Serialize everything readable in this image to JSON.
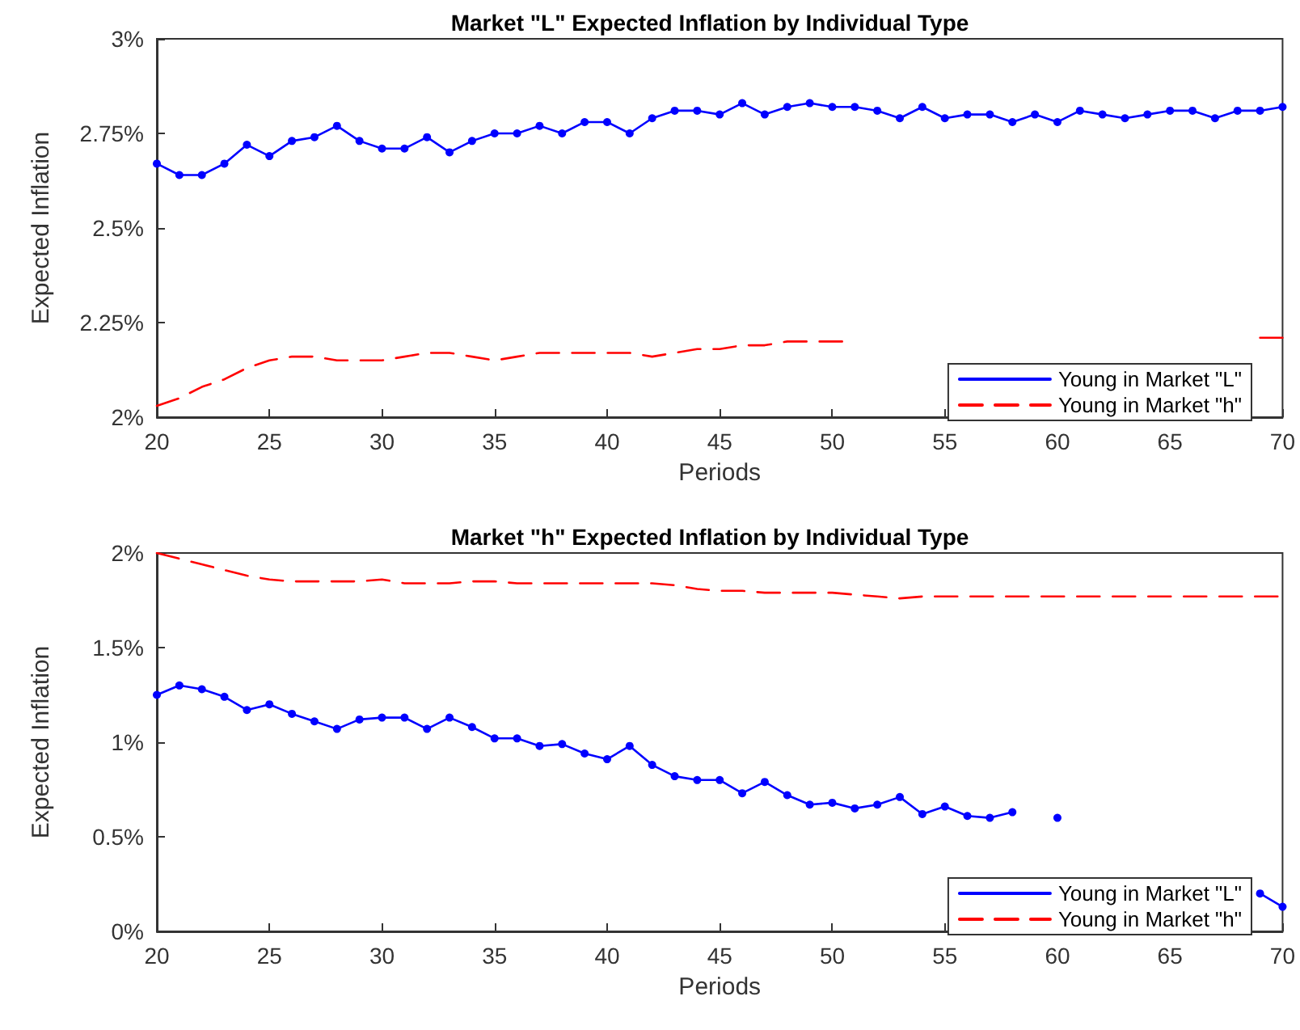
{
  "chart_data": [
    {
      "type": "line",
      "title": "Market \"L\" Expected Inflation by Individual Type",
      "xlabel": "Periods",
      "ylabel": "Expected Inflation",
      "x": [
        20,
        21,
        22,
        23,
        24,
        25,
        26,
        27,
        28,
        29,
        30,
        31,
        32,
        33,
        34,
        35,
        36,
        37,
        38,
        39,
        40,
        41,
        42,
        43,
        44,
        45,
        46,
        47,
        48,
        49,
        50,
        51,
        52,
        53,
        54,
        55,
        56,
        57,
        58,
        59,
        60,
        61,
        62,
        63,
        64,
        65,
        66,
        67,
        68,
        69,
        70
      ],
      "series": [
        {
          "name": "Young in Market \"L\"",
          "color": "#0000ff",
          "marker": "circle",
          "line_style": "solid",
          "values": [
            2.67,
            2.64,
            2.64,
            2.67,
            2.72,
            2.69,
            2.73,
            2.74,
            2.77,
            2.73,
            2.71,
            2.71,
            2.74,
            2.7,
            2.73,
            2.75,
            2.75,
            2.77,
            2.75,
            2.78,
            2.78,
            2.75,
            2.79,
            2.81,
            2.81,
            2.8,
            2.83,
            2.8,
            2.82,
            2.83,
            2.82,
            2.82,
            2.81,
            2.79,
            2.82,
            2.79,
            2.8,
            2.8,
            2.78,
            2.8,
            2.78,
            2.81,
            2.8,
            2.79,
            2.8,
            2.81,
            2.81,
            2.79,
            2.81,
            2.81,
            2.82
          ]
        },
        {
          "name": "Young in Market \"h\"",
          "color": "#ff0000",
          "marker": "none",
          "line_style": "dashed",
          "values": [
            2.03,
            2.05,
            2.08,
            2.1,
            2.13,
            2.15,
            2.16,
            2.16,
            2.15,
            2.15,
            2.15,
            2.16,
            2.17,
            2.17,
            2.16,
            2.15,
            2.16,
            2.17,
            2.17,
            2.17,
            2.17,
            2.17,
            2.16,
            2.17,
            2.18,
            2.18,
            2.19,
            2.19,
            2.2,
            2.2,
            2.2,
            2.2,
            null,
            null,
            null,
            null,
            null,
            null,
            null,
            null,
            null,
            null,
            null,
            null,
            null,
            null,
            null,
            null,
            null,
            2.21,
            2.21
          ]
        }
      ],
      "xlim": [
        20,
        70
      ],
      "xticks": [
        20,
        25,
        30,
        35,
        40,
        45,
        50,
        55,
        60,
        65,
        70
      ],
      "ylim": [
        2,
        3
      ],
      "yticks": [
        {
          "value": 2,
          "label": "2%"
        },
        {
          "value": 2.25,
          "label": "2.25%"
        },
        {
          "value": 2.5,
          "label": "2.5%"
        },
        {
          "value": 2.75,
          "label": "2.75%"
        },
        {
          "value": 3,
          "label": "3%"
        }
      ],
      "grid": false,
      "legend": "bottom right"
    },
    {
      "type": "line",
      "title": "Market \"h\" Expected Inflation by Individual Type",
      "xlabel": "Periods",
      "ylabel": "Expected Inflation",
      "x": [
        20,
        21,
        22,
        23,
        24,
        25,
        26,
        27,
        28,
        29,
        30,
        31,
        32,
        33,
        34,
        35,
        36,
        37,
        38,
        39,
        40,
        41,
        42,
        43,
        44,
        45,
        46,
        47,
        48,
        49,
        50,
        51,
        52,
        53,
        54,
        55,
        56,
        57,
        58,
        59,
        60,
        61,
        62,
        63,
        64,
        65,
        66,
        67,
        68,
        69,
        70
      ],
      "series": [
        {
          "name": "Young in Market \"L\"",
          "color": "#0000ff",
          "marker": "circle",
          "line_style": "solid",
          "values": [
            1.25,
            1.3,
            1.28,
            1.24,
            1.17,
            1.2,
            1.15,
            1.11,
            1.07,
            1.12,
            1.13,
            1.13,
            1.07,
            1.13,
            1.08,
            1.02,
            1.02,
            0.98,
            0.99,
            0.94,
            0.91,
            0.98,
            0.88,
            0.82,
            0.8,
            0.8,
            0.73,
            0.79,
            0.72,
            0.67,
            0.68,
            0.65,
            0.67,
            0.71,
            0.62,
            0.66,
            0.61,
            0.6,
            0.63,
            null,
            0.6,
            null,
            null,
            null,
            null,
            null,
            null,
            null,
            null,
            0.2,
            0.13
          ]
        },
        {
          "name": "Young in Market \"h\"",
          "color": "#ff0000",
          "marker": "none",
          "line_style": "dashed",
          "values": [
            2.0,
            1.97,
            1.94,
            1.91,
            1.88,
            1.86,
            1.85,
            1.85,
            1.85,
            1.85,
            1.86,
            1.84,
            1.84,
            1.84,
            1.85,
            1.85,
            1.84,
            1.84,
            1.84,
            1.84,
            1.84,
            1.84,
            1.84,
            1.83,
            1.81,
            1.8,
            1.8,
            1.79,
            1.79,
            1.79,
            1.79,
            1.78,
            1.77,
            1.76,
            1.77,
            1.77,
            1.77,
            1.77,
            1.77,
            1.77,
            1.77,
            1.77,
            1.77,
            1.77,
            1.77,
            1.77,
            1.77,
            1.77,
            1.77,
            1.77,
            1.77
          ]
        }
      ],
      "xlim": [
        20,
        70
      ],
      "xticks": [
        20,
        25,
        30,
        35,
        40,
        45,
        50,
        55,
        60,
        65,
        70
      ],
      "ylim": [
        0,
        2
      ],
      "yticks": [
        {
          "value": 0,
          "label": "0%"
        },
        {
          "value": 0.5,
          "label": "0.5%"
        },
        {
          "value": 1,
          "label": "1%"
        },
        {
          "value": 1.5,
          "label": "1.5%"
        },
        {
          "value": 2,
          "label": "2%"
        }
      ],
      "grid": false,
      "legend": "bottom right"
    }
  ]
}
